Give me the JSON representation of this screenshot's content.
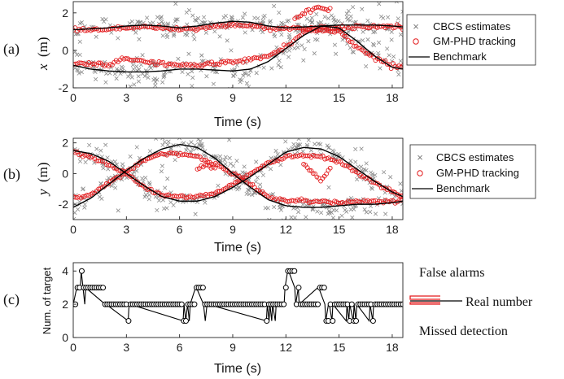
{
  "chart_data": [
    {
      "panel": "(a)",
      "type": "scatter",
      "xlabel": "Time (s)",
      "ylabel_var": "x",
      "ylabel_unit": "(m)",
      "xlim": [
        0,
        18.6
      ],
      "ylim": [
        -2,
        2.6
      ],
      "xticks": [
        "0",
        "3",
        "6",
        "9",
        "12",
        "15",
        "18"
      ],
      "yticks": [
        "-2",
        "0",
        "2"
      ],
      "legend": [
        "CBCS estimates",
        "GM-PHD tracking",
        "Benchmark"
      ],
      "legend_location": "right",
      "colors": {
        "estimates": "#8c8c8c",
        "tracking": "#e31a1c",
        "benchmark": "#000000"
      },
      "benchmark": [
        {
          "name": "target 1",
          "t": [
            0,
            1,
            2,
            3,
            4,
            5,
            6,
            7,
            8,
            9,
            10,
            11,
            12,
            13,
            14,
            15,
            16,
            17,
            18,
            18.6
          ],
          "y": [
            1.1,
            1.15,
            1.2,
            1.3,
            1.35,
            1.3,
            1.2,
            1.3,
            1.45,
            1.55,
            1.5,
            1.3,
            1.2,
            1.25,
            1.3,
            1.35,
            1.35,
            1.35,
            1.3,
            1.25
          ]
        },
        {
          "name": "target 2",
          "t": [
            0,
            1,
            2,
            3,
            4,
            5,
            6,
            7,
            8,
            9,
            10,
            11,
            12,
            13,
            14,
            15,
            16,
            17,
            18,
            18.6
          ],
          "y": [
            -0.8,
            -1.0,
            -1.1,
            -1.15,
            -1.15,
            -1.1,
            -1.0,
            -1.0,
            -1.05,
            -1.1,
            -1.0,
            -0.6,
            0.1,
            0.8,
            1.3,
            1.2,
            0.5,
            -0.3,
            -0.9,
            -1.0
          ]
        }
      ],
      "tracking": [
        {
          "t": [
            0,
            1,
            2,
            3,
            4,
            5,
            6,
            7,
            8,
            9,
            10,
            11,
            12,
            13,
            14,
            15,
            16,
            17,
            18,
            18.6
          ],
          "y": [
            1.1,
            1.1,
            1.15,
            1.2,
            1.25,
            1.2,
            1.1,
            1.15,
            1.3,
            1.35,
            1.3,
            1.2,
            1.15,
            1.2,
            1.2,
            1.2,
            1.25,
            1.3,
            1.25,
            1.2
          ]
        },
        {
          "t": [
            0,
            1,
            2,
            3,
            4,
            5,
            6,
            7,
            8,
            9,
            10,
            11,
            12,
            13,
            14,
            15,
            16,
            17,
            18,
            18.6
          ],
          "y": [
            -0.7,
            -0.75,
            -0.8,
            -0.4,
            -0.6,
            -0.7,
            -0.8,
            -0.8,
            -0.7,
            -0.6,
            -0.5,
            -0.3,
            0.2,
            1.0,
            1.1,
            1.0,
            0.2,
            -0.4,
            -0.8,
            -0.9
          ]
        },
        {
          "t": [
            12.5,
            13,
            13.5,
            14,
            14.5
          ],
          "y": [
            1.7,
            2.0,
            2.2,
            2.3,
            2.1
          ]
        }
      ]
    },
    {
      "panel": "(b)",
      "type": "scatter",
      "xlabel": "Time (s)",
      "ylabel_var": "y",
      "ylabel_unit": "(m)",
      "xlim": [
        0,
        18.6
      ],
      "ylim": [
        -3,
        2.3
      ],
      "xticks": [
        "0",
        "3",
        "6",
        "9",
        "12",
        "15",
        "18"
      ],
      "yticks": [
        "-2",
        "0",
        "2"
      ],
      "legend": [
        "CBCS estimates",
        "GM-PHD tracking",
        "Benchmark"
      ],
      "legend_location": "right",
      "colors": {
        "estimates": "#8c8c8c",
        "tracking": "#e31a1c",
        "benchmark": "#000000"
      },
      "benchmark": [
        {
          "name": "target 1",
          "t": [
            0,
            1,
            2,
            3,
            4,
            5,
            6,
            7,
            8,
            9,
            10,
            11,
            12,
            13,
            14,
            15,
            16,
            17,
            18,
            18.6
          ],
          "y": [
            1.5,
            1.3,
            0.8,
            0.0,
            -0.8,
            -1.5,
            -1.8,
            -1.8,
            -1.5,
            -0.9,
            -0.2,
            0.6,
            1.4,
            1.7,
            1.6,
            1.1,
            0.3,
            -0.5,
            -1.2,
            -1.5
          ]
        },
        {
          "name": "target 2",
          "t": [
            0,
            1,
            2,
            3,
            4,
            5,
            6,
            7,
            8,
            9,
            10,
            11,
            12,
            13,
            14,
            15,
            16,
            17,
            18,
            18.6
          ],
          "y": [
            -2.2,
            -1.6,
            -0.7,
            0.2,
            1.0,
            1.6,
            1.9,
            1.7,
            1.0,
            0.0,
            -0.9,
            -1.7,
            -2.1,
            -2.2,
            -2.2,
            -2.1,
            -2.0,
            -2.0,
            -1.9,
            -1.8
          ]
        }
      ],
      "tracking": [
        {
          "t": [
            0,
            1,
            2,
            3,
            4,
            5,
            6,
            7,
            8,
            9,
            10,
            11,
            12,
            13,
            14,
            15,
            16,
            17,
            18,
            18.6
          ],
          "y": [
            1.4,
            1.1,
            0.6,
            0.0,
            -0.9,
            -1.4,
            -1.5,
            -1.5,
            -1.3,
            -0.7,
            0.0,
            0.7,
            1.1,
            1.2,
            1.1,
            0.8,
            0.1,
            -0.6,
            -1.2,
            -1.5
          ]
        },
        {
          "t": [
            0,
            1,
            2,
            3,
            4,
            5,
            6,
            7,
            8,
            9,
            10,
            11,
            12,
            13,
            14,
            15,
            16,
            17,
            18,
            18.6
          ],
          "y": [
            -1.6,
            -1.4,
            -0.6,
            0.1,
            0.9,
            1.3,
            1.3,
            1.1,
            0.6,
            0.0,
            -0.7,
            -1.5,
            -1.8,
            -1.8,
            -1.8,
            -1.9,
            -1.8,
            -1.8,
            -1.8,
            -1.7
          ]
        },
        {
          "t": [
            7,
            7.5,
            8
          ],
          "y": [
            0.3,
            0.5,
            0.4
          ]
        },
        {
          "t": [
            13,
            13.5,
            14,
            14.5
          ],
          "y": [
            0.6,
            0.1,
            -0.5,
            0.4
          ]
        }
      ]
    },
    {
      "panel": "(c)",
      "type": "line",
      "xlabel": "Time (s)",
      "ylabel": "Num. of target",
      "xlim": [
        0,
        18.6
      ],
      "ylim": [
        0,
        4.5
      ],
      "xticks": [
        "0",
        "3",
        "6",
        "9",
        "12",
        "15",
        "18"
      ],
      "yticks": [
        "0",
        "2",
        "4"
      ],
      "colors": {
        "line": "#000000",
        "annotation": "#e31a1c"
      },
      "steps": {
        "t": [
          0,
          0.2,
          0.4,
          0.45,
          0.55,
          0.65,
          0.7,
          1.8,
          1.85,
          3.1,
          3.15,
          3.2,
          6.2,
          6.25,
          6.35,
          6.45,
          6.55,
          6.6,
          6.9,
          6.95,
          7.35,
          7.45,
          7.55,
          7.6,
          10.9,
          10.95,
          11.05,
          11.1,
          11.2,
          11.25,
          11.4,
          11.45,
          11.9,
          11.95,
          12.1,
          12.15,
          12.5,
          12.55,
          12.7,
          12.75,
          13.8,
          13.85,
          14.2,
          14.25,
          14.4,
          14.45,
          14.6,
          14.65,
          15.4,
          15.45,
          15.55,
          15.6,
          15.8,
          15.85,
          15.95,
          16.0,
          16.7,
          16.75,
          16.9,
          16.95,
          18.6
        ],
        "n": [
          2,
          3,
          3,
          4,
          3,
          2,
          3,
          2,
          2,
          1,
          2,
          2,
          1,
          2,
          1,
          2,
          1,
          2,
          3,
          3,
          2,
          1,
          2,
          2,
          1,
          2,
          1,
          2,
          1,
          2,
          1,
          2,
          2,
          3,
          4,
          4,
          3,
          2,
          3,
          2,
          3,
          3,
          2,
          1,
          2,
          2,
          1,
          2,
          1,
          2,
          1,
          2,
          1,
          2,
          1,
          2,
          1,
          2,
          1,
          2,
          2
        ]
      },
      "annotations": {
        "false_alarms": "False alarms",
        "real_number": "Real number",
        "missed_detection": "Missed detection"
      }
    }
  ]
}
